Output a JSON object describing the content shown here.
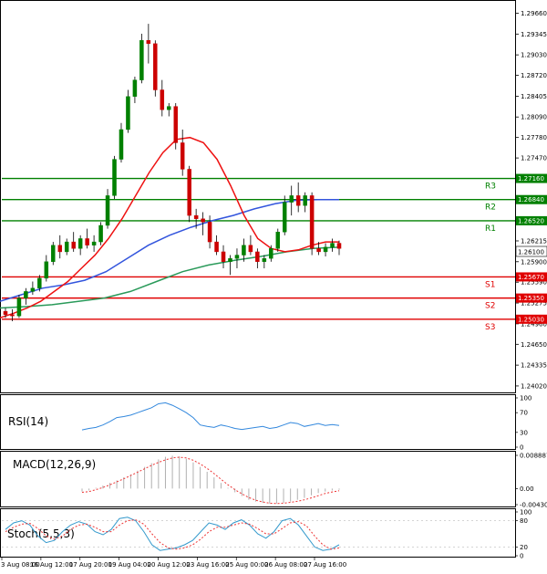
{
  "main": {
    "y_ticks": [
      "1.29660",
      "1.29345",
      "1.29030",
      "1.28720",
      "1.28405",
      "1.28090",
      "1.27780",
      "1.27470",
      "1.27160",
      "1.26840",
      "1.26520",
      "1.26215",
      "1.25900",
      "1.25590",
      "1.25275",
      "1.24960",
      "1.24650",
      "1.24335",
      "1.24020"
    ],
    "levels": [
      {
        "label": "R3",
        "price": 1.2716,
        "price_text": "1.27160",
        "color": "#008000"
      },
      {
        "label": "R2",
        "price": 1.2684,
        "price_text": "1.26840",
        "color": "#008000"
      },
      {
        "label": "R1",
        "price": 1.2652,
        "price_text": "1.26520",
        "color": "#008000"
      },
      {
        "label": "S1",
        "price": 1.2567,
        "price_text": "1.25670",
        "color": "#e00000"
      },
      {
        "label": "S2",
        "price": 1.2535,
        "price_text": "1.25350",
        "color": "#e00000"
      },
      {
        "label": "S3",
        "price": 1.2503,
        "price_text": "1.25030",
        "color": "#e00000"
      }
    ],
    "current_price": "1.26100",
    "colors": {
      "up": "#008000",
      "down": "#cc0000",
      "ma_fast": "#ee1111",
      "ma_mid": "#3355dd",
      "ma_slow": "#2a9a5a"
    }
  },
  "rsi": {
    "label": "RSI(14)",
    "ticks": [
      "100",
      "70",
      "30",
      "0"
    ],
    "color": "#3388dd"
  },
  "macd": {
    "label": "MACD(12,26,9)",
    "ticks": [
      "0.008887",
      "0.00",
      "-0.004303"
    ],
    "colors": {
      "hist": "#b0b0b0",
      "signal": "#ee3333"
    }
  },
  "stoch": {
    "label": "Stoch(5,5,3)",
    "ticks": [
      "100",
      "80",
      "20",
      "0"
    ],
    "colors": {
      "main": "#3399cc",
      "signal": "#ee3333"
    }
  },
  "x_labels": [
    "3 Aug 08:00",
    "16 Aug 12:00",
    "17 Aug 20:00",
    "19 Aug 04:00",
    "20 Aug 12:00",
    "23 Aug 16:00",
    "25 Aug 00:00",
    "26 Aug 08:00",
    "27 Aug 16:00"
  ],
  "chart_data": {
    "type": "candlestick",
    "ylim": [
      1.2395,
      1.2975
    ],
    "grid": false,
    "candles": [
      [
        1.2515,
        1.252,
        1.2505,
        1.251
      ],
      [
        1.251,
        1.2518,
        1.25,
        1.2508
      ],
      [
        1.2508,
        1.254,
        1.2505,
        1.2535
      ],
      [
        1.2535,
        1.255,
        1.2525,
        1.2545
      ],
      [
        1.2545,
        1.256,
        1.254,
        1.255
      ],
      [
        1.255,
        1.257,
        1.2545,
        1.2565
      ],
      [
        1.2565,
        1.26,
        1.256,
        1.259
      ],
      [
        1.259,
        1.262,
        1.2585,
        1.2615
      ],
      [
        1.2615,
        1.263,
        1.2595,
        1.2605
      ],
      [
        1.2605,
        1.2625,
        1.26,
        1.262
      ],
      [
        1.262,
        1.2635,
        1.2605,
        1.261
      ],
      [
        1.261,
        1.263,
        1.26,
        1.2625
      ],
      [
        1.2625,
        1.264,
        1.261,
        1.2615
      ],
      [
        1.2615,
        1.263,
        1.2605,
        1.262
      ],
      [
        1.262,
        1.265,
        1.2615,
        1.2645
      ],
      [
        1.2645,
        1.27,
        1.264,
        1.269
      ],
      [
        1.269,
        1.275,
        1.2685,
        1.2745
      ],
      [
        1.2745,
        1.28,
        1.274,
        1.279
      ],
      [
        1.279,
        1.285,
        1.2785,
        1.284
      ],
      [
        1.284,
        1.287,
        1.283,
        1.2865
      ],
      [
        1.2865,
        1.2935,
        1.286,
        1.2925
      ],
      [
        1.2925,
        1.295,
        1.289,
        1.292
      ],
      [
        1.292,
        1.2925,
        1.284,
        1.285
      ],
      [
        1.285,
        1.2865,
        1.281,
        1.282
      ],
      [
        1.282,
        1.283,
        1.281,
        1.2825
      ],
      [
        1.2825,
        1.283,
        1.276,
        1.277
      ],
      [
        1.277,
        1.279,
        1.272,
        1.273
      ],
      [
        1.273,
        1.2735,
        1.265,
        1.266
      ],
      [
        1.266,
        1.267,
        1.264,
        1.2655
      ],
      [
        1.2655,
        1.2665,
        1.263,
        1.265
      ],
      [
        1.265,
        1.266,
        1.261,
        1.262
      ],
      [
        1.262,
        1.263,
        1.26,
        1.2605
      ],
      [
        1.2605,
        1.2615,
        1.258,
        1.259
      ],
      [
        1.259,
        1.26,
        1.257,
        1.2595
      ],
      [
        1.2595,
        1.261,
        1.258,
        1.26
      ],
      [
        1.26,
        1.2625,
        1.259,
        1.2615
      ],
      [
        1.2615,
        1.263,
        1.26,
        1.2605
      ],
      [
        1.2605,
        1.261,
        1.258,
        1.259
      ],
      [
        1.259,
        1.26,
        1.258,
        1.2595
      ],
      [
        1.2595,
        1.2615,
        1.259,
        1.261
      ],
      [
        1.261,
        1.264,
        1.2605,
        1.2635
      ],
      [
        1.2635,
        1.269,
        1.263,
        1.268
      ],
      [
        1.268,
        1.2705,
        1.266,
        1.269
      ],
      [
        1.269,
        1.271,
        1.2665,
        1.2675
      ],
      [
        1.2675,
        1.2695,
        1.2665,
        1.269
      ],
      [
        1.269,
        1.2695,
        1.26,
        1.261
      ],
      [
        1.261,
        1.262,
        1.26,
        1.2605
      ],
      [
        1.2605,
        1.2618,
        1.2598,
        1.2612
      ],
      [
        1.2612,
        1.2625,
        1.2605,
        1.2618
      ],
      [
        1.2618,
        1.2622,
        1.26,
        1.261
      ]
    ],
    "ma_fast": [
      1.2505,
      1.2512,
      1.252,
      1.253,
      1.2545,
      1.256,
      1.258,
      1.26,
      1.2625,
      1.2655,
      1.269,
      1.2725,
      1.2755,
      1.2775,
      1.2778,
      1.277,
      1.2745,
      1.2705,
      1.266,
      1.2625,
      1.261,
      1.2605,
      1.2608,
      1.2615,
      1.262,
      1.262
    ],
    "ma_mid": [
      1.253,
      1.254,
      1.255,
      1.2555,
      1.2562,
      1.2575,
      1.2595,
      1.2615,
      1.263,
      1.2642,
      1.2652,
      1.266,
      1.267,
      1.2678,
      1.2683,
      1.2684,
      1.2684
    ],
    "ma_slow": [
      1.252,
      1.2522,
      1.2525,
      1.253,
      1.2535,
      1.2545,
      1.256,
      1.2575,
      1.2585,
      1.2592,
      1.2598,
      1.2605,
      1.261,
      1.2612
    ],
    "rsi": [
      35,
      38,
      40,
      45,
      52,
      60,
      62,
      65,
      70,
      75,
      80,
      88,
      90,
      85,
      78,
      70,
      60,
      45,
      42,
      40,
      45,
      42,
      38,
      36,
      38,
      40,
      42,
      38,
      40,
      45,
      50,
      48,
      42,
      45,
      48,
      44,
      46,
      44
    ],
    "macd_hist": [
      -0.0008,
      -0.0005,
      0.0002,
      0.0008,
      0.0015,
      0.0022,
      0.003,
      0.0038,
      0.0048,
      0.0058,
      0.0068,
      0.0078,
      0.0085,
      0.0088,
      0.0086,
      0.008,
      0.007,
      0.0058,
      0.0045,
      0.003,
      0.0015,
      0.0002,
      -0.001,
      -0.002,
      -0.003,
      -0.0035,
      -0.0038,
      -0.004,
      -0.004,
      -0.0038,
      -0.0035,
      -0.003,
      -0.0025,
      -0.0018,
      -0.0012,
      -0.0008,
      -0.0005,
      -0.0003
    ],
    "macd_signal": [
      -0.001,
      -0.0008,
      -0.0003,
      0.0003,
      0.001,
      0.0018,
      0.0026,
      0.0035,
      0.0044,
      0.0053,
      0.0062,
      0.007,
      0.0077,
      0.0082,
      0.0084,
      0.0082,
      0.0076,
      0.0066,
      0.0054,
      0.004,
      0.0025,
      0.001,
      -0.0003,
      -0.0014,
      -0.0024,
      -0.0031,
      -0.0036,
      -0.0039,
      -0.004,
      -0.0039,
      -0.0037,
      -0.0034,
      -0.003,
      -0.0025,
      -0.0019,
      -0.0013,
      -0.0009,
      -0.0006
    ],
    "stoch_main": [
      60,
      75,
      80,
      70,
      45,
      30,
      35,
      55,
      70,
      78,
      72,
      55,
      48,
      60,
      85,
      88,
      80,
      55,
      25,
      12,
      15,
      18,
      25,
      35,
      55,
      75,
      70,
      60,
      75,
      82,
      70,
      50,
      40,
      55,
      80,
      85,
      70,
      45,
      20,
      12,
      15,
      25
    ],
    "stoch_signal": [
      55,
      65,
      72,
      74,
      62,
      45,
      38,
      45,
      60,
      70,
      72,
      65,
      55,
      55,
      70,
      80,
      82,
      72,
      50,
      30,
      18,
      15,
      18,
      25,
      38,
      55,
      65,
      65,
      70,
      75,
      72,
      62,
      50,
      50,
      62,
      75,
      78,
      68,
      45,
      25,
      15,
      18
    ]
  }
}
